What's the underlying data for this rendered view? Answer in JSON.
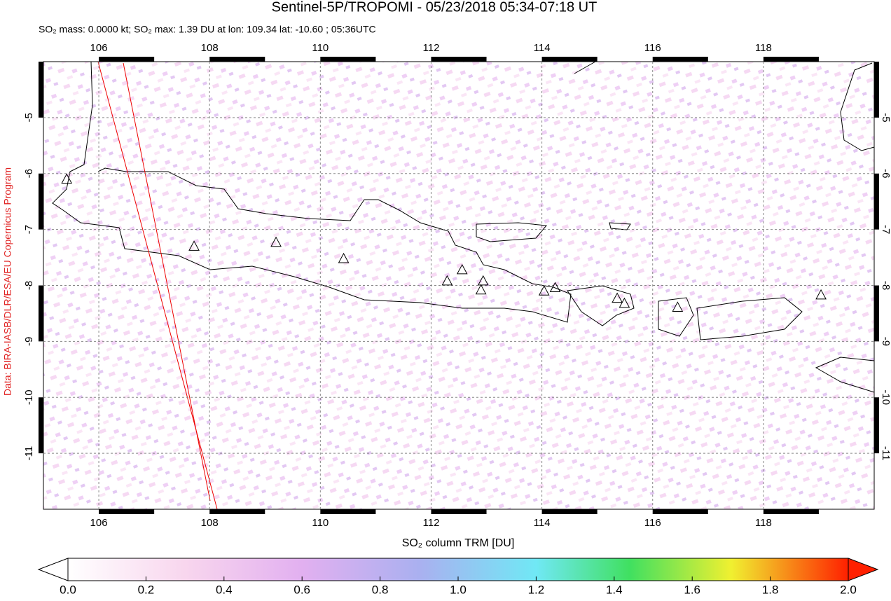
{
  "title": "Sentinel-5P/TROPOMI - 05/23/2018 05:34-07:18 UT",
  "subtitle": "SO₂ mass: 0.0000 kt; SO₂ max: 1.39 DU at lon: 109.34 lat: -10.60 ; 05:36UTC",
  "credit": "Data: BIRA-IASB/DLR/ESA/EU Copernicus Program",
  "chart_data": {
    "type": "map",
    "xlim": [
      105,
      120
    ],
    "ylim": [
      -12,
      -4
    ],
    "xticks": [
      106,
      108,
      110,
      112,
      114,
      116,
      118
    ],
    "yticks": [
      -5,
      -6,
      -7,
      -8,
      -9,
      -10,
      -11
    ],
    "grid": true,
    "volcanoes": {
      "lon": [
        105.42,
        107.72,
        109.2,
        110.42,
        112.29,
        112.56,
        112.94,
        112.9,
        114.04,
        114.24,
        115.36,
        115.49,
        116.45,
        119.04
      ],
      "lat": [
        -6.11,
        -7.31,
        -7.24,
        -7.53,
        -7.93,
        -7.73,
        -7.93,
        -8.09,
        -8.11,
        -8.05,
        -8.24,
        -8.33,
        -8.4,
        -8.18
      ]
    }
  },
  "colorbar": {
    "label": "SO₂ column TRM [DU]",
    "xlim": [
      0,
      2
    ],
    "ticks": [
      {
        "value": 0,
        "label": "0.0"
      },
      {
        "value": 0.2,
        "label": "0.2"
      },
      {
        "value": 0.4,
        "label": "0.4"
      },
      {
        "value": 0.6,
        "label": "0.6"
      },
      {
        "value": 0.8,
        "label": "0.8"
      },
      {
        "value": 1.0,
        "label": "1.0"
      },
      {
        "value": 1.2,
        "label": "1.2"
      },
      {
        "value": 1.4,
        "label": "1.4"
      },
      {
        "value": 1.6,
        "label": "1.6"
      },
      {
        "value": 1.8,
        "label": "1.8"
      },
      {
        "value": 2.0,
        "label": "2.0"
      }
    ]
  }
}
